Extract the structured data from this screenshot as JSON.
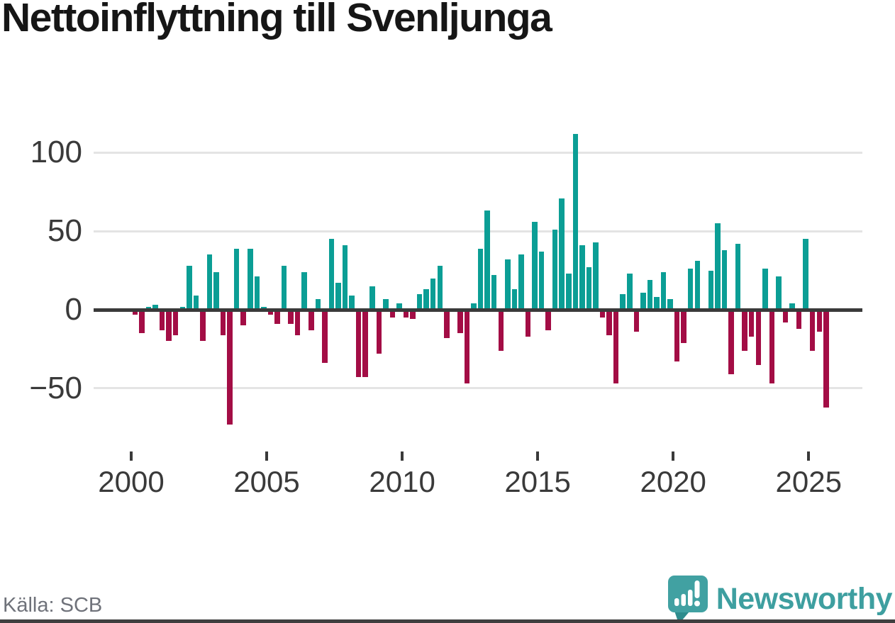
{
  "title": "Nettoinflyttning till Svenljunga",
  "source": "Källa: SCB",
  "branding": {
    "name": "Newsworthy"
  },
  "colors": {
    "positive": "#0b9e95",
    "negative": "#a30d45",
    "zero_axis": "#3a3a3a",
    "gridline": "#e4e4e4",
    "tick_label": "#3a3a3a",
    "source_text": "#6f727a",
    "brand_teal": "#3e9fa0",
    "logo_bubble": "#41a1a2",
    "logo_tail": "#2e8c8d"
  },
  "chart_data": {
    "type": "bar",
    "title": "Nettoinflyttning till Svenljunga",
    "granularity": "quarterly",
    "start_year": 2000,
    "bars_per_year": 4,
    "y_ticks": [
      100,
      50,
      0,
      -50
    ],
    "x_ticks": [
      2000,
      2005,
      2010,
      2015,
      2020,
      2025
    ],
    "ylim": [
      -85,
      120
    ],
    "grid": true,
    "legend": "none",
    "values": [
      -3,
      -15,
      2,
      3,
      -13,
      -20,
      -16,
      2,
      28,
      9,
      -20,
      35,
      24,
      -16,
      -73,
      39,
      -10,
      39,
      21,
      2,
      -3,
      -9,
      28,
      -9,
      -16,
      24,
      -13,
      7,
      -34,
      45,
      17,
      41,
      9,
      -43,
      -43,
      15,
      -28,
      7,
      -5,
      4,
      -5,
      -6,
      10,
      13,
      20,
      28,
      -18,
      0,
      -15,
      -47,
      4,
      39,
      63,
      22,
      -26,
      32,
      13,
      35,
      -17,
      56,
      37,
      -13,
      51,
      71,
      23,
      112,
      41,
      27,
      43,
      -5,
      -16,
      -47,
      10,
      23,
      -14,
      11,
      19,
      8,
      24,
      7,
      -33,
      -21,
      26,
      31,
      0,
      25,
      55,
      38,
      -41,
      42,
      -26,
      -17,
      -35,
      26,
      -47,
      21,
      -8,
      4,
      -12,
      45,
      -26,
      -14,
      -62
    ]
  }
}
